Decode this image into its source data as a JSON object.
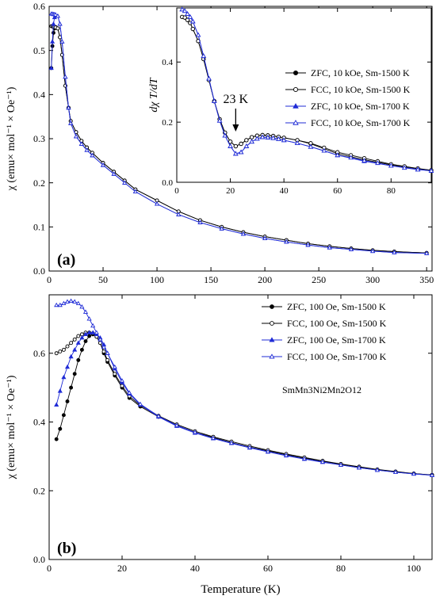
{
  "chart_data": [
    {
      "type": "scatter",
      "panel_label": "(a)",
      "ylabel": "χ (emu× mol⁻¹ × Oe⁻¹)",
      "xlabel": "",
      "xlim": [
        0,
        355
      ],
      "ylim": [
        0,
        0.6
      ],
      "xticks": [
        0,
        50,
        100,
        150,
        200,
        250,
        300,
        350
      ],
      "yticks": [
        0.0,
        0.1,
        0.2,
        0.3,
        0.4,
        0.5,
        0.6
      ],
      "series": [
        {
          "name": "ZFC, 10 kOe, Sm-1500 K",
          "color": "#000000",
          "marker": "circle-filled",
          "x": [
            2,
            3,
            4,
            5,
            6,
            8,
            10,
            12,
            15,
            18,
            20,
            25,
            30,
            35,
            40,
            50,
            60,
            70,
            80,
            100,
            120,
            140,
            160,
            180,
            200,
            220,
            240,
            260,
            280,
            300,
            320,
            350
          ],
          "y": [
            0.46,
            0.51,
            0.54,
            0.55,
            0.553,
            0.55,
            0.53,
            0.49,
            0.42,
            0.37,
            0.34,
            0.315,
            0.295,
            0.28,
            0.268,
            0.245,
            0.225,
            0.205,
            0.185,
            0.16,
            0.135,
            0.115,
            0.1,
            0.088,
            0.078,
            0.07,
            0.062,
            0.056,
            0.051,
            0.047,
            0.044,
            0.041
          ]
        },
        {
          "name": "FCC, 10 kOe, Sm-1500 K",
          "color": "#000000",
          "marker": "circle-open",
          "x": [
            2,
            3,
            4,
            5,
            6,
            8,
            10,
            12,
            15,
            18,
            20,
            25,
            30,
            35,
            40,
            50,
            60,
            70,
            80,
            100,
            120,
            140,
            160,
            180,
            200,
            220,
            240,
            260,
            280,
            300,
            320,
            350
          ],
          "y": [
            0.555,
            0.555,
            0.553,
            0.553,
            0.552,
            0.55,
            0.53,
            0.49,
            0.42,
            0.37,
            0.34,
            0.315,
            0.295,
            0.28,
            0.268,
            0.245,
            0.225,
            0.205,
            0.185,
            0.16,
            0.135,
            0.115,
            0.1,
            0.088,
            0.078,
            0.07,
            0.062,
            0.056,
            0.051,
            0.047,
            0.044,
            0.041
          ]
        },
        {
          "name": "ZFC, 10 kOe, Sm-1700 K",
          "color": "#1f2bd6",
          "marker": "triangle-filled",
          "x": [
            2,
            3,
            4,
            5,
            6,
            8,
            10,
            12,
            15,
            18,
            20,
            25,
            30,
            35,
            40,
            50,
            60,
            70,
            80,
            100,
            120,
            140,
            160,
            180,
            200,
            220,
            240,
            260,
            280,
            300,
            320,
            350
          ],
          "y": [
            0.46,
            0.52,
            0.56,
            0.575,
            0.58,
            0.578,
            0.56,
            0.52,
            0.44,
            0.37,
            0.335,
            0.305,
            0.288,
            0.274,
            0.262,
            0.24,
            0.22,
            0.2,
            0.18,
            0.152,
            0.128,
            0.11,
            0.096,
            0.084,
            0.074,
            0.066,
            0.059,
            0.053,
            0.049,
            0.045,
            0.042,
            0.04
          ]
        },
        {
          "name": "FCC, 10 kOe, Sm-1700 K",
          "color": "#1f2bd6",
          "marker": "triangle-open",
          "x": [
            2,
            3,
            4,
            5,
            6,
            8,
            10,
            12,
            15,
            18,
            20,
            25,
            30,
            35,
            40,
            50,
            60,
            70,
            80,
            100,
            120,
            140,
            160,
            180,
            200,
            220,
            240,
            260,
            280,
            300,
            320,
            350
          ],
          "y": [
            0.583,
            0.583,
            0.582,
            0.582,
            0.581,
            0.578,
            0.56,
            0.52,
            0.44,
            0.37,
            0.335,
            0.305,
            0.288,
            0.274,
            0.262,
            0.24,
            0.22,
            0.2,
            0.18,
            0.152,
            0.128,
            0.11,
            0.096,
            0.084,
            0.074,
            0.066,
            0.059,
            0.053,
            0.049,
            0.045,
            0.042,
            0.04
          ]
        }
      ]
    },
    {
      "type": "scatter",
      "panel_label": "",
      "role": "inset",
      "ylabel": "dχ T/dT",
      "xlabel": "",
      "xlim": [
        0,
        95
      ],
      "ylim": [
        0,
        0.58
      ],
      "xticks": [
        0,
        20,
        40,
        60,
        80
      ],
      "yticks": [
        0.0,
        0.2,
        0.4
      ],
      "annotation": {
        "text": "23 K",
        "x": 22,
        "y": 0.125
      },
      "series": [
        {
          "name": "ZFC, 10 kOe, Sm-1500 K",
          "color": "#000000",
          "marker": "circle-filled",
          "x": [
            2,
            3,
            4,
            5,
            6,
            8,
            10,
            12,
            14,
            16,
            18,
            20,
            22,
            24,
            26,
            28,
            30,
            32,
            34,
            36,
            38,
            40,
            45,
            50,
            60,
            70,
            80,
            90,
            95
          ],
          "y": [
            0.55,
            0.548,
            0.54,
            0.53,
            0.51,
            0.47,
            0.41,
            0.34,
            0.27,
            0.21,
            0.165,
            0.135,
            0.12,
            0.128,
            0.14,
            0.15,
            0.155,
            0.157,
            0.156,
            0.154,
            0.151,
            0.148,
            0.14,
            0.128,
            0.095,
            0.075,
            0.058,
            0.045,
            0.04
          ]
        },
        {
          "name": "FCC, 10 kOe, Sm-1500 K",
          "color": "#000000",
          "marker": "circle-open",
          "x": [
            2,
            3,
            4,
            5,
            6,
            8,
            10,
            12,
            14,
            16,
            18,
            20,
            22,
            24,
            26,
            28,
            30,
            32,
            34,
            36,
            38,
            40,
            45,
            50,
            55,
            60,
            65,
            70,
            75,
            80,
            85,
            90,
            95
          ],
          "y": [
            0.55,
            0.548,
            0.54,
            0.53,
            0.51,
            0.47,
            0.41,
            0.34,
            0.27,
            0.21,
            0.165,
            0.135,
            0.12,
            0.128,
            0.14,
            0.15,
            0.155,
            0.157,
            0.156,
            0.154,
            0.151,
            0.148,
            0.14,
            0.13,
            0.115,
            0.1,
            0.09,
            0.08,
            0.07,
            0.06,
            0.053,
            0.046,
            0.04
          ]
        },
        {
          "name": "ZFC, 10 kOe, Sm-1700 K",
          "color": "#1f2bd6",
          "marker": "triangle-filled",
          "x": [
            2,
            3,
            4,
            5,
            6,
            8,
            10,
            12,
            14,
            16,
            18,
            20,
            22,
            24,
            26,
            28,
            30,
            32,
            34,
            36,
            38,
            40,
            45,
            50,
            60,
            70,
            80,
            90,
            95
          ],
          "y": [
            0.575,
            0.57,
            0.56,
            0.55,
            0.535,
            0.49,
            0.42,
            0.345,
            0.27,
            0.205,
            0.155,
            0.12,
            0.095,
            0.1,
            0.12,
            0.135,
            0.145,
            0.15,
            0.149,
            0.147,
            0.144,
            0.14,
            0.13,
            0.118,
            0.09,
            0.07,
            0.055,
            0.043,
            0.038
          ]
        },
        {
          "name": "FCC, 10 kOe, Sm-1700 K",
          "color": "#1f2bd6",
          "marker": "triangle-open",
          "x": [
            2,
            3,
            4,
            5,
            6,
            8,
            10,
            12,
            14,
            16,
            18,
            20,
            22,
            24,
            26,
            28,
            30,
            32,
            34,
            36,
            38,
            40,
            45,
            50,
            55,
            60,
            65,
            70,
            75,
            80,
            85,
            90,
            95
          ],
          "y": [
            0.575,
            0.57,
            0.56,
            0.55,
            0.535,
            0.49,
            0.42,
            0.345,
            0.27,
            0.205,
            0.155,
            0.12,
            0.095,
            0.1,
            0.12,
            0.135,
            0.145,
            0.15,
            0.149,
            0.147,
            0.144,
            0.14,
            0.13,
            0.118,
            0.105,
            0.09,
            0.082,
            0.072,
            0.064,
            0.055,
            0.048,
            0.042,
            0.038
          ]
        }
      ]
    },
    {
      "type": "scatter",
      "panel_label": "(b)",
      "ylabel": "χ (emu× mol⁻¹ × Oe⁻¹)",
      "xlabel": "Temperature (K)",
      "xlim": [
        0,
        105
      ],
      "ylim": [
        0,
        0.77
      ],
      "xticks": [
        0,
        20,
        40,
        60,
        80,
        100
      ],
      "yticks": [
        0.0,
        0.2,
        0.4,
        0.6
      ],
      "annotation_text": "SmMn3Ni2Mn2O12",
      "series": [
        {
          "name": "ZFC, 100 Oe, Sm-1500 K",
          "color": "#000000",
          "marker": "circle-filled",
          "x": [
            2,
            3,
            4,
            5,
            6,
            7,
            8,
            9,
            10,
            11,
            12,
            13,
            14,
            15,
            16,
            18,
            20,
            22,
            25,
            30,
            35,
            40,
            45,
            50,
            55,
            60,
            65,
            70,
            75,
            80,
            85,
            90,
            95,
            100,
            105
          ],
          "y": [
            0.35,
            0.38,
            0.42,
            0.46,
            0.5,
            0.54,
            0.58,
            0.61,
            0.635,
            0.65,
            0.655,
            0.648,
            0.63,
            0.6,
            0.575,
            0.535,
            0.5,
            0.47,
            0.445,
            0.415,
            0.39,
            0.37,
            0.355,
            0.34,
            0.327,
            0.316,
            0.305,
            0.295,
            0.286,
            0.277,
            0.269,
            0.261,
            0.255,
            0.25,
            0.246
          ]
        },
        {
          "name": "FCC, 100 Oe, Sm-1500 K",
          "color": "#000000",
          "marker": "circle-open",
          "x": [
            2,
            3,
            4,
            5,
            6,
            7,
            8,
            9,
            10,
            11,
            12,
            13,
            14,
            15,
            16,
            18,
            20,
            22,
            25,
            30,
            35,
            40,
            45,
            50,
            55,
            60,
            65,
            70,
            75,
            80,
            85,
            90,
            95,
            100,
            105
          ],
          "y": [
            0.6,
            0.605,
            0.61,
            0.62,
            0.63,
            0.64,
            0.65,
            0.655,
            0.66,
            0.66,
            0.658,
            0.648,
            0.63,
            0.605,
            0.58,
            0.54,
            0.505,
            0.475,
            0.448,
            0.418,
            0.393,
            0.373,
            0.357,
            0.343,
            0.33,
            0.318,
            0.307,
            0.297,
            0.287,
            0.278,
            0.27,
            0.262,
            0.256,
            0.25,
            0.246
          ]
        },
        {
          "name": "ZFC, 100 Oe, Sm-1700 K",
          "color": "#1f2bd6",
          "marker": "triangle-filled",
          "x": [
            2,
            3,
            4,
            5,
            6,
            7,
            8,
            9,
            10,
            11,
            12,
            13,
            14,
            15,
            16,
            18,
            20,
            22,
            25,
            30,
            35,
            40,
            45,
            50,
            55,
            60,
            65,
            70,
            75,
            80,
            85,
            90,
            95,
            100,
            105
          ],
          "y": [
            0.45,
            0.49,
            0.53,
            0.56,
            0.59,
            0.61,
            0.63,
            0.645,
            0.655,
            0.66,
            0.66,
            0.655,
            0.645,
            0.625,
            0.6,
            0.555,
            0.515,
            0.482,
            0.45,
            0.415,
            0.388,
            0.368,
            0.352,
            0.338,
            0.325,
            0.313,
            0.302,
            0.292,
            0.283,
            0.275,
            0.267,
            0.26,
            0.254,
            0.249,
            0.245
          ]
        },
        {
          "name": "FCC, 100 Oe, Sm-1700 K",
          "color": "#1f2bd6",
          "marker": "triangle-open",
          "x": [
            2,
            3,
            4,
            5,
            6,
            7,
            8,
            9,
            10,
            11,
            12,
            13,
            14,
            15,
            16,
            18,
            20,
            22,
            25,
            30,
            35,
            40,
            45,
            50,
            55,
            60,
            65,
            70,
            75,
            80,
            85,
            90,
            95,
            100,
            105
          ],
          "y": [
            0.74,
            0.74,
            0.745,
            0.75,
            0.752,
            0.75,
            0.745,
            0.735,
            0.72,
            0.7,
            0.68,
            0.66,
            0.64,
            0.618,
            0.6,
            0.56,
            0.52,
            0.485,
            0.452,
            0.417,
            0.39,
            0.37,
            0.353,
            0.339,
            0.326,
            0.314,
            0.303,
            0.293,
            0.284,
            0.275,
            0.267,
            0.26,
            0.254,
            0.249,
            0.245
          ]
        }
      ]
    }
  ]
}
